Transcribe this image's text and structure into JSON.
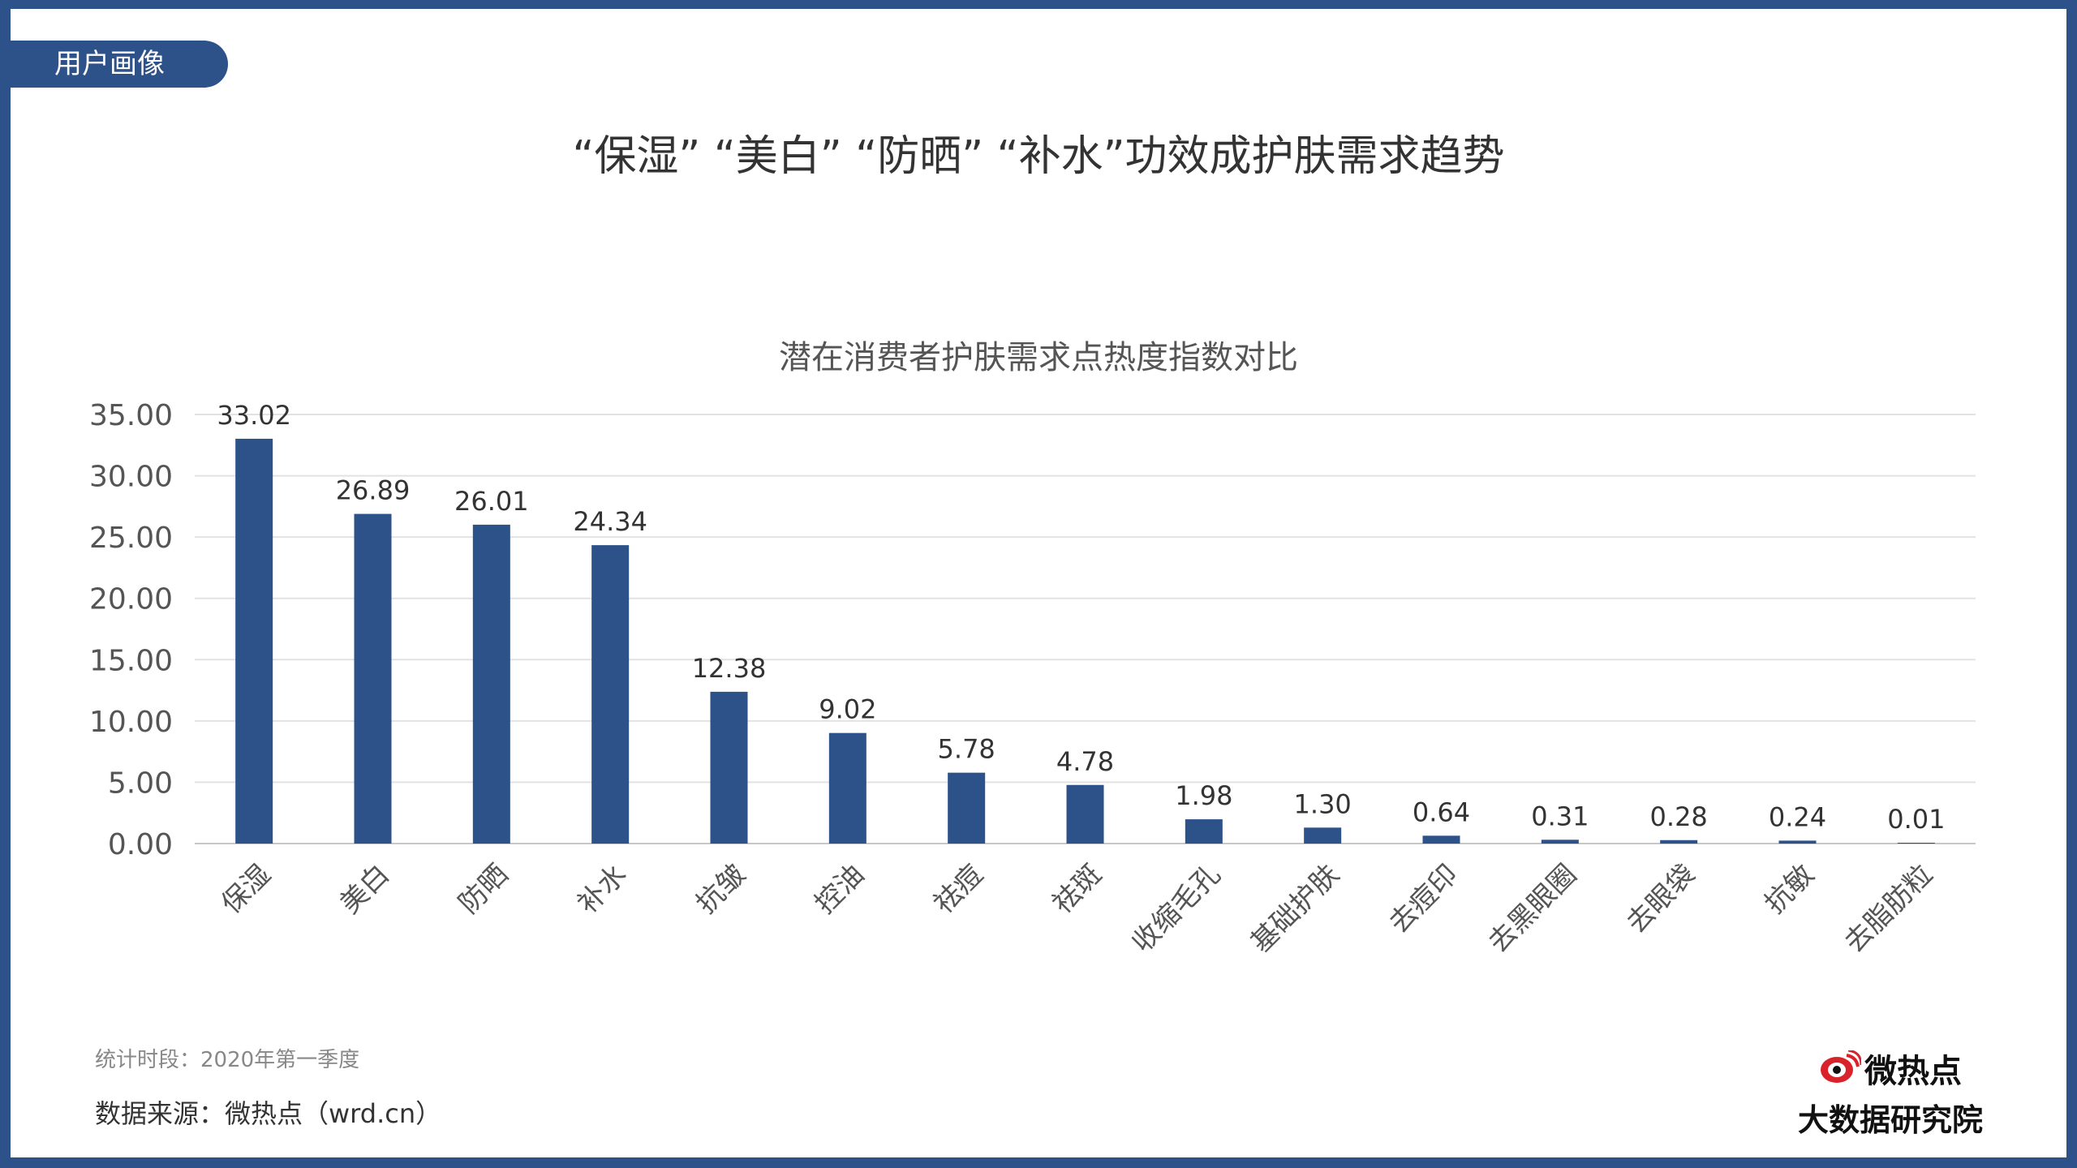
{
  "header": {
    "tag": "用户画像",
    "headline": "“保湿” “美白” “防晒” “补水”功效成护肤需求趋势"
  },
  "chart_data": {
    "type": "bar",
    "title": "潜在消费者护肤需求点热度指数对比",
    "categories": [
      "保湿",
      "美白",
      "防晒",
      "补水",
      "抗皱",
      "控油",
      "祛痘",
      "祛斑",
      "收缩毛孔",
      "基础护肤",
      "去痘印",
      "去黑眼圈",
      "去眼袋",
      "抗敏",
      "去脂肪粒"
    ],
    "values": [
      33.02,
      26.89,
      26.01,
      24.34,
      12.38,
      9.02,
      5.78,
      4.78,
      1.98,
      1.3,
      0.64,
      0.31,
      0.28,
      0.24,
      0.01
    ],
    "ylim": [
      0,
      35
    ],
    "yticks": [
      0,
      5,
      10,
      15,
      20,
      25,
      30,
      35
    ],
    "grid": true,
    "bar_color": "#2d5189"
  },
  "footer": {
    "period": "统计时段：2020年第一季度",
    "source": "数据来源：微热点（wrd.cn）"
  },
  "brand": {
    "name": "微热点",
    "subtitle": "大数据研究院",
    "logo_color": "#d9232a"
  }
}
